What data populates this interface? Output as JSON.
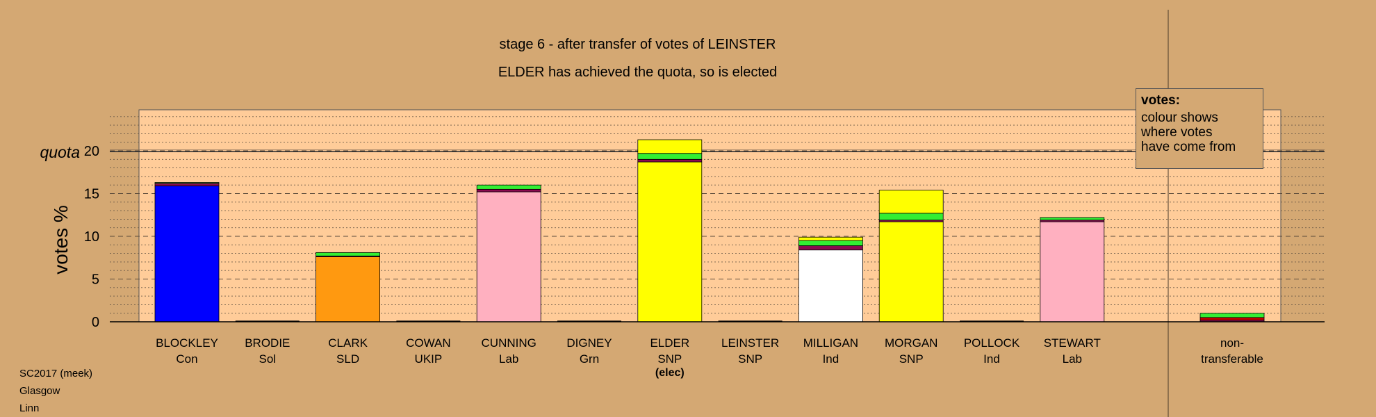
{
  "header": {
    "title_line1": "stage 6 - after transfer of votes of LEINSTER",
    "title_line2": "ELDER has achieved the quota, so is elected"
  },
  "footer": {
    "line1": "SC2017 (meek)",
    "line2": "Glasgow",
    "line3": "Linn"
  },
  "legend": {
    "title": "votes:",
    "line1": "colour shows",
    "line2": "where votes",
    "line3": "have come from"
  },
  "chart_data": {
    "type": "bar",
    "stacked": true,
    "ylabel": "votes %",
    "quota_label": "quota",
    "quota": 19.9,
    "ylim": [
      0,
      25
    ],
    "yticks": [
      0,
      5,
      10,
      15,
      20
    ],
    "grid": "dotted minor every 1, dashed major every 5",
    "legend_placement": "top-right",
    "categories": [
      {
        "name": "BLOCKLEY",
        "party": "Con",
        "note": ""
      },
      {
        "name": "BRODIE",
        "party": "Sol",
        "note": ""
      },
      {
        "name": "CLARK",
        "party": "SLD",
        "note": ""
      },
      {
        "name": "COWAN",
        "party": "UKIP",
        "note": ""
      },
      {
        "name": "CUNNING",
        "party": "Lab",
        "note": ""
      },
      {
        "name": "DIGNEY",
        "party": "Grn",
        "note": ""
      },
      {
        "name": "ELDER",
        "party": "SNP",
        "note": "(elec)"
      },
      {
        "name": "LEINSTER",
        "party": "SNP",
        "note": ""
      },
      {
        "name": "MILLIGAN",
        "party": "Ind",
        "note": ""
      },
      {
        "name": "MORGAN",
        "party": "SNP",
        "note": ""
      },
      {
        "name": "POLLOCK",
        "party": "Ind",
        "note": ""
      },
      {
        "name": "STEWART",
        "party": "Lab",
        "note": ""
      }
    ],
    "nontransferable": {
      "label_line1": "non-",
      "label_line2": "transferable"
    },
    "colors": {
      "Con": "#0000ff",
      "SLD": "#ff9910",
      "Lab": "#ffb0c0",
      "SNP": "#ffff00",
      "Ind": "#ffffff",
      "Grn": "#33ee33",
      "UKIP": "#8b0a50",
      "Sol": "#cc0000",
      "plot_bg": "#ffcc99",
      "page_bg": "#d4a873"
    },
    "stacks": [
      [
        {
          "value": 15.9,
          "color": "#0000ff"
        },
        {
          "value": 0.3,
          "color": "#8b0a50"
        },
        {
          "value": 0.1,
          "color": "#33ee33"
        }
      ],
      [],
      [
        {
          "value": 7.6,
          "color": "#ff9910"
        },
        {
          "value": 0.1,
          "color": "#8b0a50"
        },
        {
          "value": 0.4,
          "color": "#33ee33"
        }
      ],
      [],
      [
        {
          "value": 15.2,
          "color": "#ffb0c0"
        },
        {
          "value": 0.3,
          "color": "#8b0a50"
        },
        {
          "value": 0.5,
          "color": "#33ee33"
        }
      ],
      [],
      [
        {
          "value": 18.7,
          "color": "#ffff00"
        },
        {
          "value": 0.3,
          "color": "#8b0a50"
        },
        {
          "value": 0.7,
          "color": "#33ee33"
        },
        {
          "value": 1.6,
          "color": "#ffff00"
        }
      ],
      [],
      [
        {
          "value": 8.4,
          "color": "#ffffff"
        },
        {
          "value": 0.5,
          "color": "#8b0a50"
        },
        {
          "value": 0.6,
          "color": "#33ee33"
        },
        {
          "value": 0.4,
          "color": "#ffff00"
        }
      ],
      [
        {
          "value": 11.7,
          "color": "#ffff00"
        },
        {
          "value": 0.2,
          "color": "#8b0a50"
        },
        {
          "value": 0.8,
          "color": "#33ee33"
        },
        {
          "value": 2.7,
          "color": "#ffff00"
        }
      ],
      [],
      [
        {
          "value": 11.7,
          "color": "#ffb0c0"
        },
        {
          "value": 0.2,
          "color": "#8b0a50"
        },
        {
          "value": 0.3,
          "color": "#33ee33"
        }
      ]
    ],
    "nontransferable_stack": [
      {
        "value": 0.2,
        "color": "#8b0a50"
      },
      {
        "value": 0.3,
        "color": "#cc0000"
      },
      {
        "value": 0.5,
        "color": "#33ee33"
      }
    ]
  }
}
